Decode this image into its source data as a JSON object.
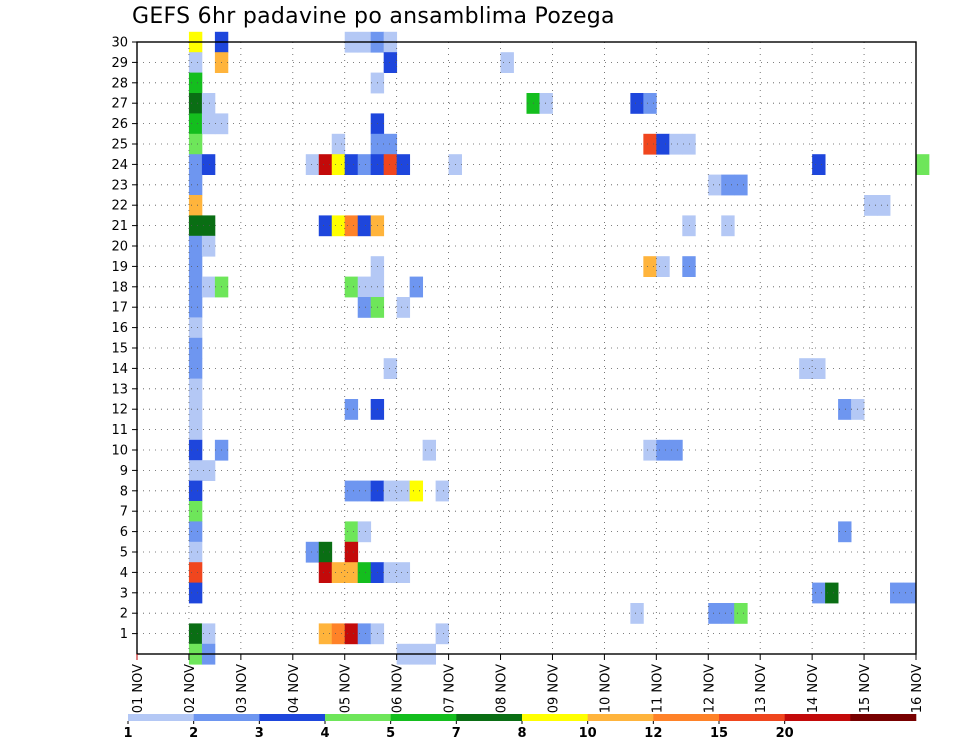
{
  "colors": {
    "1": "#b4c8f5",
    "2": "#6e96f0",
    "3": "#1e46dc",
    "4": "#6ee65a",
    "5": "#14be1e",
    "6": "#0a6e14",
    "7": "#ffff00",
    "8": "#ffb43c",
    "10": "#ff8228",
    "12": "#f0461e",
    "15": "#c30a0a",
    "20": "#780000"
  },
  "chart_data": {
    "type": "heatmap",
    "title": "GEFS 6hr padavine po ansamblima Pozega",
    "x_tick_labels": [
      "01 NOV",
      "02 NOV",
      "03 NOV",
      "04 NOV",
      "05 NOV",
      "06 NOV",
      "07 NOV",
      "08 NOV",
      "09 NOV",
      "10 NOV",
      "11 NOV",
      "12 NOV",
      "13 NOV",
      "14 NOV",
      "15 NOV",
      "16 NOV"
    ],
    "y_tick_labels": [
      "1",
      "2",
      "3",
      "4",
      "5",
      "6",
      "7",
      "8",
      "9",
      "10",
      "11",
      "12",
      "13",
      "14",
      "15",
      "16",
      "17",
      "18",
      "19",
      "20",
      "21",
      "22",
      "23",
      "24",
      "25",
      "26",
      "27",
      "28",
      "29",
      "30"
    ],
    "xlim_days": [
      1,
      16
    ],
    "ylim": [
      0,
      30
    ],
    "grid": true,
    "legend_labels": [
      "1",
      "2",
      "3",
      "4",
      "5",
      "7",
      "8",
      "10",
      "12",
      "15",
      "20"
    ],
    "legend_segments": [
      "1",
      "2",
      "3",
      "4",
      "5",
      "6",
      "7",
      "8",
      "10",
      "12",
      "15",
      "20"
    ],
    "cells": [
      {
        "m": 30,
        "x": "02 00Z",
        "c": "7"
      },
      {
        "m": 30,
        "x": "02 12Z",
        "c": "3"
      },
      {
        "m": 30,
        "x": "05 00Z",
        "c": "1"
      },
      {
        "m": 30,
        "x": "05 06Z",
        "c": "1"
      },
      {
        "m": 30,
        "x": "05 12Z",
        "c": "2"
      },
      {
        "m": 30,
        "x": "05 18Z",
        "c": "1"
      },
      {
        "m": 29,
        "x": "02 00Z",
        "c": "1"
      },
      {
        "m": 29,
        "x": "02 12Z",
        "c": "8"
      },
      {
        "m": 29,
        "x": "05 18Z",
        "c": "3"
      },
      {
        "m": 29,
        "x": "08 00Z",
        "c": "1"
      },
      {
        "m": 28,
        "x": "02 00Z",
        "c": "5"
      },
      {
        "m": 28,
        "x": "05 12Z",
        "c": "1"
      },
      {
        "m": 27,
        "x": "02 00Z",
        "c": "6"
      },
      {
        "m": 27,
        "x": "02 06Z",
        "c": "1"
      },
      {
        "m": 27,
        "x": "08 12Z",
        "c": "5"
      },
      {
        "m": 27,
        "x": "08 18Z",
        "c": "1"
      },
      {
        "m": 27,
        "x": "10 12Z",
        "c": "3"
      },
      {
        "m": 27,
        "x": "10 18Z",
        "c": "2"
      },
      {
        "m": 26,
        "x": "02 00Z",
        "c": "5"
      },
      {
        "m": 26,
        "x": "02 06Z",
        "c": "1"
      },
      {
        "m": 26,
        "x": "02 12Z",
        "c": "1"
      },
      {
        "m": 26,
        "x": "05 12Z",
        "c": "3"
      },
      {
        "m": 25,
        "x": "02 00Z",
        "c": "4"
      },
      {
        "m": 25,
        "x": "04 18Z",
        "c": "1"
      },
      {
        "m": 25,
        "x": "05 12Z",
        "c": "2"
      },
      {
        "m": 25,
        "x": "05 18Z",
        "c": "2"
      },
      {
        "m": 25,
        "x": "10 18Z",
        "c": "12"
      },
      {
        "m": 25,
        "x": "11 00Z",
        "c": "3"
      },
      {
        "m": 25,
        "x": "11 06Z",
        "c": "1"
      },
      {
        "m": 25,
        "x": "11 12Z",
        "c": "1"
      },
      {
        "m": 24,
        "x": "02 00Z",
        "c": "2"
      },
      {
        "m": 24,
        "x": "02 06Z",
        "c": "3"
      },
      {
        "m": 24,
        "x": "04 06Z",
        "c": "1"
      },
      {
        "m": 24,
        "x": "04 12Z",
        "c": "15"
      },
      {
        "m": 24,
        "x": "04 18Z",
        "c": "7"
      },
      {
        "m": 24,
        "x": "05 00Z",
        "c": "3"
      },
      {
        "m": 24,
        "x": "05 06Z",
        "c": "2"
      },
      {
        "m": 24,
        "x": "05 12Z",
        "c": "3"
      },
      {
        "m": 24,
        "x": "05 18Z",
        "c": "12"
      },
      {
        "m": 24,
        "x": "06 00Z",
        "c": "3"
      },
      {
        "m": 24,
        "x": "07 00Z",
        "c": "1"
      },
      {
        "m": 24,
        "x": "14 00Z",
        "c": "3"
      },
      {
        "m": 24,
        "x": "16 00Z",
        "c": "4"
      },
      {
        "m": 23,
        "x": "02 00Z",
        "c": "2"
      },
      {
        "m": 23,
        "x": "12 00Z",
        "c": "1"
      },
      {
        "m": 23,
        "x": "12 06Z",
        "c": "2"
      },
      {
        "m": 23,
        "x": "12 12Z",
        "c": "2"
      },
      {
        "m": 22,
        "x": "02 00Z",
        "c": "8"
      },
      {
        "m": 22,
        "x": "15 00Z",
        "c": "1"
      },
      {
        "m": 22,
        "x": "15 06Z",
        "c": "1"
      },
      {
        "m": 21,
        "x": "02 00Z",
        "c": "6"
      },
      {
        "m": 21,
        "x": "02 06Z",
        "c": "6"
      },
      {
        "m": 21,
        "x": "04 12Z",
        "c": "3"
      },
      {
        "m": 21,
        "x": "04 18Z",
        "c": "7"
      },
      {
        "m": 21,
        "x": "05 00Z",
        "c": "10"
      },
      {
        "m": 21,
        "x": "05 06Z",
        "c": "3"
      },
      {
        "m": 21,
        "x": "05 12Z",
        "c": "8"
      },
      {
        "m": 21,
        "x": "11 12Z",
        "c": "1"
      },
      {
        "m": 21,
        "x": "12 06Z",
        "c": "1"
      },
      {
        "m": 20,
        "x": "02 00Z",
        "c": "2"
      },
      {
        "m": 20,
        "x": "02 06Z",
        "c": "1"
      },
      {
        "m": 19,
        "x": "02 00Z",
        "c": "2"
      },
      {
        "m": 19,
        "x": "05 12Z",
        "c": "1"
      },
      {
        "m": 19,
        "x": "10 18Z",
        "c": "8"
      },
      {
        "m": 19,
        "x": "11 00Z",
        "c": "1"
      },
      {
        "m": 19,
        "x": "11 12Z",
        "c": "2"
      },
      {
        "m": 18,
        "x": "02 00Z",
        "c": "2"
      },
      {
        "m": 18,
        "x": "02 06Z",
        "c": "1"
      },
      {
        "m": 18,
        "x": "02 12Z",
        "c": "4"
      },
      {
        "m": 18,
        "x": "05 00Z",
        "c": "4"
      },
      {
        "m": 18,
        "x": "05 06Z",
        "c": "1"
      },
      {
        "m": 18,
        "x": "05 12Z",
        "c": "1"
      },
      {
        "m": 18,
        "x": "06 06Z",
        "c": "2"
      },
      {
        "m": 17,
        "x": "02 00Z",
        "c": "2"
      },
      {
        "m": 17,
        "x": "05 06Z",
        "c": "2"
      },
      {
        "m": 17,
        "x": "05 12Z",
        "c": "4"
      },
      {
        "m": 17,
        "x": "06 00Z",
        "c": "1"
      },
      {
        "m": 16,
        "x": "02 00Z",
        "c": "1"
      },
      {
        "m": 15,
        "x": "02 00Z",
        "c": "2"
      },
      {
        "m": 14,
        "x": "02 00Z",
        "c": "2"
      },
      {
        "m": 14,
        "x": "05 18Z",
        "c": "1"
      },
      {
        "m": 14,
        "x": "13 18Z",
        "c": "1"
      },
      {
        "m": 14,
        "x": "14 00Z",
        "c": "1"
      },
      {
        "m": 13,
        "x": "02 00Z",
        "c": "1"
      },
      {
        "m": 12,
        "x": "02 00Z",
        "c": "1"
      },
      {
        "m": 12,
        "x": "05 00Z",
        "c": "2"
      },
      {
        "m": 12,
        "x": "05 12Z",
        "c": "3"
      },
      {
        "m": 12,
        "x": "14 12Z",
        "c": "2"
      },
      {
        "m": 12,
        "x": "14 18Z",
        "c": "1"
      },
      {
        "m": 11,
        "x": "02 00Z",
        "c": "1"
      },
      {
        "m": 10,
        "x": "02 00Z",
        "c": "3"
      },
      {
        "m": 10,
        "x": "02 12Z",
        "c": "2"
      },
      {
        "m": 10,
        "x": "06 12Z",
        "c": "1"
      },
      {
        "m": 10,
        "x": "10 18Z",
        "c": "1"
      },
      {
        "m": 10,
        "x": "11 00Z",
        "c": "2"
      },
      {
        "m": 10,
        "x": "11 06Z",
        "c": "2"
      },
      {
        "m": 9,
        "x": "02 00Z",
        "c": "1"
      },
      {
        "m": 9,
        "x": "02 06Z",
        "c": "1"
      },
      {
        "m": 8,
        "x": "02 00Z",
        "c": "3"
      },
      {
        "m": 8,
        "x": "05 00Z",
        "c": "2"
      },
      {
        "m": 8,
        "x": "05 06Z",
        "c": "2"
      },
      {
        "m": 8,
        "x": "05 12Z",
        "c": "3"
      },
      {
        "m": 8,
        "x": "05 18Z",
        "c": "1"
      },
      {
        "m": 8,
        "x": "06 00Z",
        "c": "1"
      },
      {
        "m": 8,
        "x": "06 06Z",
        "c": "7"
      },
      {
        "m": 8,
        "x": "06 18Z",
        "c": "1"
      },
      {
        "m": 7,
        "x": "02 00Z",
        "c": "4"
      },
      {
        "m": 6,
        "x": "02 00Z",
        "c": "2"
      },
      {
        "m": 6,
        "x": "05 00Z",
        "c": "4"
      },
      {
        "m": 6,
        "x": "05 06Z",
        "c": "1"
      },
      {
        "m": 6,
        "x": "14 12Z",
        "c": "2"
      },
      {
        "m": 5,
        "x": "02 00Z",
        "c": "1"
      },
      {
        "m": 5,
        "x": "04 06Z",
        "c": "2"
      },
      {
        "m": 5,
        "x": "04 12Z",
        "c": "6"
      },
      {
        "m": 5,
        "x": "05 00Z",
        "c": "15"
      },
      {
        "m": 4,
        "x": "02 00Z",
        "c": "12"
      },
      {
        "m": 4,
        "x": "04 12Z",
        "c": "15"
      },
      {
        "m": 4,
        "x": "04 18Z",
        "c": "8"
      },
      {
        "m": 4,
        "x": "05 00Z",
        "c": "8"
      },
      {
        "m": 4,
        "x": "05 06Z",
        "c": "5"
      },
      {
        "m": 4,
        "x": "05 12Z",
        "c": "3"
      },
      {
        "m": 4,
        "x": "05 18Z",
        "c": "1"
      },
      {
        "m": 4,
        "x": "06 00Z",
        "c": "1"
      },
      {
        "m": 3,
        "x": "02 00Z",
        "c": "3"
      },
      {
        "m": 3,
        "x": "14 00Z",
        "c": "2"
      },
      {
        "m": 3,
        "x": "14 06Z",
        "c": "6"
      },
      {
        "m": 3,
        "x": "15 12Z",
        "c": "2"
      },
      {
        "m": 3,
        "x": "15 18Z",
        "c": "2"
      },
      {
        "m": 2,
        "x": "10 12Z",
        "c": "1"
      },
      {
        "m": 2,
        "x": "12 00Z",
        "c": "2"
      },
      {
        "m": 2,
        "x": "12 06Z",
        "c": "2"
      },
      {
        "m": 2,
        "x": "12 12Z",
        "c": "4"
      },
      {
        "m": 1,
        "x": "02 00Z",
        "c": "6"
      },
      {
        "m": 1,
        "x": "02 06Z",
        "c": "1"
      },
      {
        "m": 1,
        "x": "04 12Z",
        "c": "8"
      },
      {
        "m": 1,
        "x": "04 18Z",
        "c": "10"
      },
      {
        "m": 1,
        "x": "05 00Z",
        "c": "15"
      },
      {
        "m": 1,
        "x": "05 06Z",
        "c": "2"
      },
      {
        "m": 1,
        "x": "05 12Z",
        "c": "1"
      },
      {
        "m": 1,
        "x": "06 18Z",
        "c": "1"
      },
      {
        "m": 0,
        "x": "02 00Z",
        "c": "4"
      },
      {
        "m": 0,
        "x": "02 06Z",
        "c": "2"
      },
      {
        "m": 0,
        "x": "06 00Z",
        "c": "1"
      },
      {
        "m": 0,
        "x": "06 06Z",
        "c": "1"
      },
      {
        "m": 0,
        "x": "06 12Z",
        "c": "1"
      }
    ]
  }
}
